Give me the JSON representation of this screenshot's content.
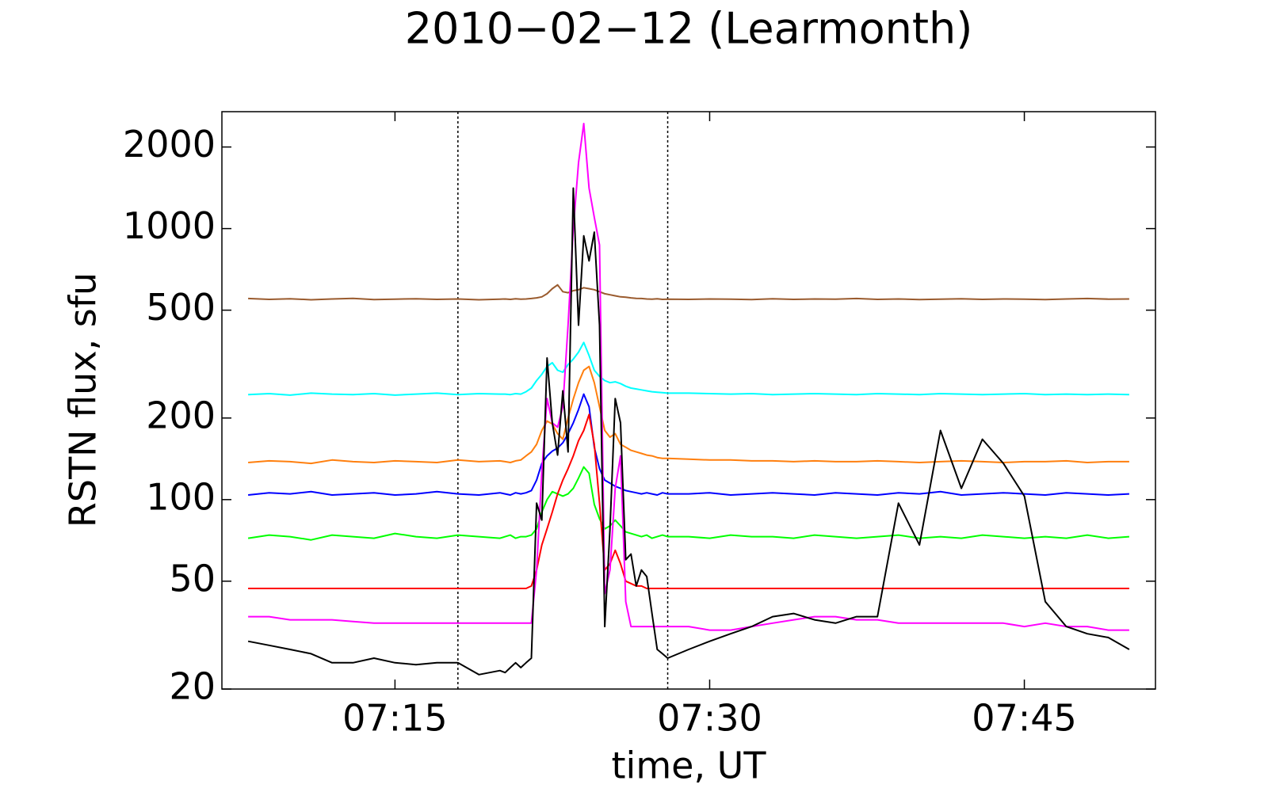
{
  "chart_data": {
    "type": "line",
    "title": "2010−02−12  (Learmonth)",
    "x_label": "time, UT",
    "y_label": "RSTN flux, sfu",
    "log_y": true,
    "xlim": [
      "07:06:45",
      "07:51:15"
    ],
    "xticks": [
      "07:15",
      "07:30",
      "07:45"
    ],
    "ylim": [
      20,
      2700
    ],
    "yticks": [
      20,
      50,
      100,
      200,
      500,
      1000,
      2000
    ],
    "vlines": [
      "07:18",
      "07:28"
    ],
    "x": [
      "07:08",
      "07:09",
      "07:10",
      "07:11",
      "07:12",
      "07:13",
      "07:14",
      "07:15",
      "07:16",
      "07:17",
      "07:18",
      "07:19",
      "07:20",
      "07:20:15",
      "07:20:30",
      "07:20:45",
      "07:21:00",
      "07:21:15",
      "07:21:30",
      "07:21:45",
      "07:22:00",
      "07:22:15",
      "07:22:30",
      "07:22:45",
      "07:23:00",
      "07:23:15",
      "07:23:30",
      "07:23:45",
      "07:24:00",
      "07:24:15",
      "07:24:30",
      "07:24:45",
      "07:25:00",
      "07:25:15",
      "07:25:30",
      "07:25:45",
      "07:26:00",
      "07:26:15",
      "07:26:30",
      "07:26:45",
      "07:27:00",
      "07:27:15",
      "07:27:30",
      "07:27:45",
      "07:28:00",
      "07:29",
      "07:30",
      "07:31",
      "07:32",
      "07:33",
      "07:34",
      "07:35",
      "07:36",
      "07:37",
      "07:38",
      "07:39",
      "07:40",
      "07:41",
      "07:42",
      "07:43",
      "07:44",
      "07:45",
      "07:46",
      "07:47",
      "07:48",
      "07:49",
      "07:50"
    ],
    "series": [
      {
        "color": "#9a5b2e",
        "values": [
          552,
          548,
          551,
          546,
          550,
          553,
          547,
          549,
          551,
          548,
          550,
          546,
          549,
          550,
          548,
          551,
          549,
          550,
          552,
          555,
          560,
          575,
          600,
          620,
          585,
          580,
          590,
          595,
          605,
          600,
          595,
          585,
          575,
          570,
          565,
          560,
          558,
          555,
          553,
          552,
          550,
          549,
          551,
          548,
          549,
          548,
          550,
          549,
          547,
          551,
          548,
          550,
          549,
          552,
          548,
          550,
          547,
          549,
          551,
          548,
          550,
          549,
          547,
          550,
          552,
          549,
          550
        ]
      },
      {
        "color": "#00ffff",
        "values": [
          244,
          246,
          243,
          247,
          245,
          244,
          246,
          243,
          245,
          247,
          244,
          246,
          245,
          245,
          244,
          246,
          245,
          250,
          258,
          275,
          290,
          310,
          320,
          300,
          295,
          315,
          330,
          350,
          380,
          340,
          300,
          285,
          275,
          270,
          272,
          268,
          262,
          258,
          256,
          254,
          252,
          250,
          249,
          248,
          247,
          247,
          246,
          245,
          246,
          244,
          245,
          246,
          245,
          244,
          246,
          245,
          244,
          246,
          245,
          244,
          245,
          246,
          244,
          245,
          244,
          245,
          244
        ]
      },
      {
        "color": "#ff7f0e",
        "values": [
          137,
          139,
          138,
          136,
          140,
          138,
          137,
          139,
          138,
          137,
          140,
          138,
          139,
          138,
          137,
          139,
          140,
          145,
          150,
          160,
          180,
          195,
          190,
          175,
          167,
          200,
          235,
          270,
          300,
          310,
          270,
          220,
          180,
          170,
          175,
          160,
          156,
          152,
          150,
          148,
          146,
          145,
          143,
          142,
          142,
          141,
          140,
          140,
          139,
          139,
          138,
          139,
          138,
          138,
          139,
          138,
          137,
          138,
          139,
          138,
          137,
          138,
          138,
          139,
          137,
          138,
          138
        ]
      },
      {
        "color": "#0000ff",
        "values": [
          104,
          106,
          105,
          107,
          104,
          105,
          106,
          104,
          105,
          107,
          105,
          104,
          106,
          105,
          104,
          106,
          105,
          106,
          108,
          118,
          136,
          145,
          151,
          155,
          162,
          175,
          192,
          215,
          245,
          220,
          156,
          130,
          118,
          115,
          112,
          110,
          108,
          107,
          106,
          105,
          106,
          105,
          104,
          106,
          105,
          105,
          106,
          104,
          105,
          106,
          105,
          104,
          106,
          105,
          104,
          106,
          105,
          107,
          104,
          105,
          106,
          105,
          104,
          106,
          105,
          104,
          105
        ]
      },
      {
        "color": "#00ff00",
        "values": [
          72,
          74,
          73,
          71,
          74,
          73,
          72,
          75,
          73,
          72,
          74,
          73,
          72,
          73,
          74,
          72,
          73,
          73,
          74,
          78,
          90,
          100,
          107,
          105,
          103,
          105,
          110,
          120,
          132,
          125,
          96,
          85,
          78,
          80,
          84,
          80,
          76,
          75,
          74,
          73,
          74,
          72,
          73,
          74,
          73,
          73,
          72,
          74,
          73,
          73,
          72,
          74,
          73,
          72,
          73,
          74,
          72,
          73,
          72,
          74,
          73,
          72,
          73,
          72,
          74,
          72,
          73
        ]
      },
      {
        "color": "#ff0000",
        "values": [
          47,
          47,
          47,
          47,
          47,
          47,
          47,
          47,
          47,
          47,
          47,
          47,
          47,
          47,
          47,
          47,
          47,
          47,
          48,
          55,
          68,
          78,
          90,
          105,
          118,
          130,
          145,
          165,
          180,
          206,
          160,
          97,
          55,
          58,
          65,
          58,
          50,
          49,
          48,
          48,
          47,
          47,
          47,
          47,
          47,
          47,
          47,
          47,
          47,
          47,
          47,
          47,
          47,
          47,
          47,
          47,
          47,
          47,
          47,
          47,
          47,
          47,
          47,
          47,
          47,
          47,
          47
        ]
      },
      {
        "color": "#ff00ff",
        "values": [
          37,
          37,
          36,
          36,
          36,
          35.5,
          35,
          35,
          35,
          35,
          35,
          35,
          35,
          35,
          35,
          35,
          35,
          35,
          35,
          55,
          127,
          236,
          192,
          185,
          220,
          440,
          1000,
          1750,
          2440,
          1410,
          1100,
          870,
          45,
          55,
          110,
          145,
          42,
          34,
          34,
          34,
          34,
          34,
          34,
          34,
          34,
          34,
          33,
          33,
          34,
          35,
          36,
          37,
          37,
          36,
          36,
          35,
          35,
          35,
          35,
          35,
          35,
          34,
          35,
          34,
          34,
          33,
          33
        ]
      },
      {
        "color": "#000000",
        "values": [
          30,
          29,
          28,
          27,
          25,
          25,
          26,
          25,
          24.6,
          25,
          25,
          22.6,
          23.4,
          23,
          24,
          25,
          24,
          25,
          26,
          97,
          84,
          333,
          192,
          146,
          252,
          150,
          1410,
          440,
          940,
          760,
          970,
          440,
          34,
          78,
          236,
          192,
          60,
          63,
          48,
          55,
          52,
          38,
          28,
          27,
          26,
          28,
          30,
          32,
          34,
          37,
          38,
          36,
          35,
          37,
          37,
          97,
          68,
          180,
          110,
          167,
          136,
          103,
          42,
          34,
          32,
          31,
          28
        ]
      }
    ]
  }
}
